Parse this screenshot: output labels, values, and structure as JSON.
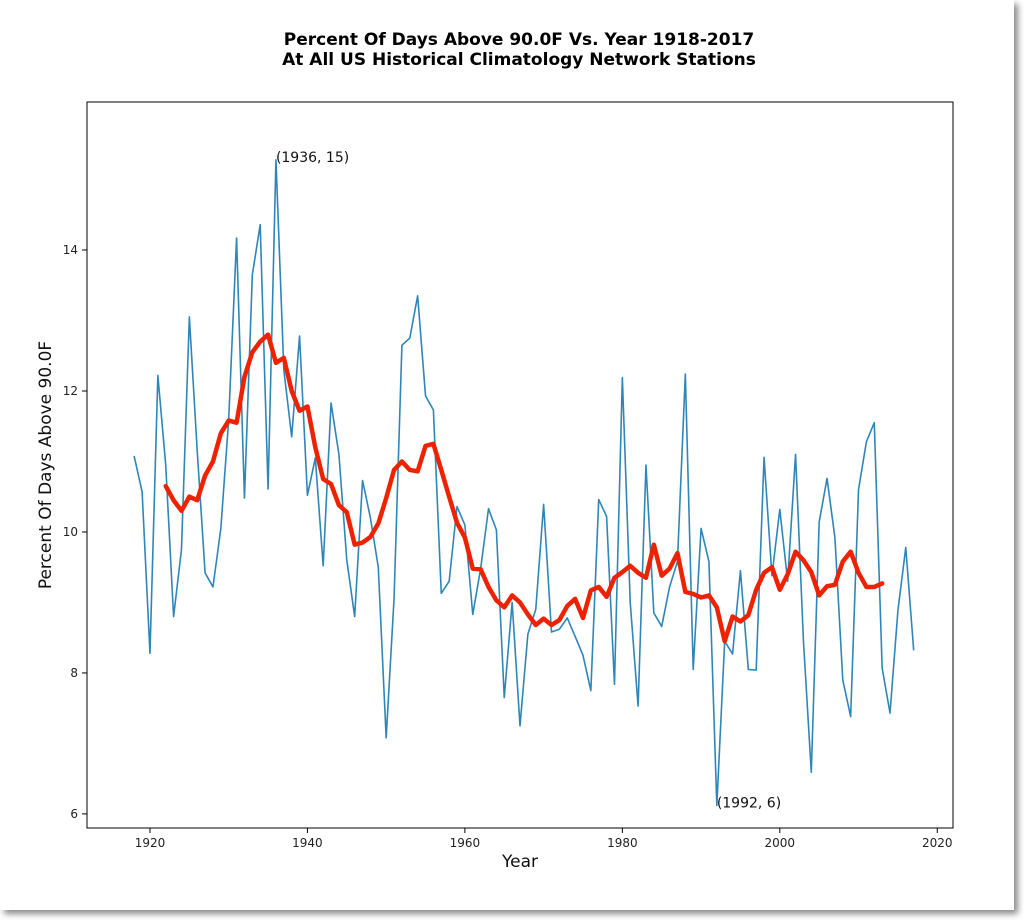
{
  "chart_data": {
    "type": "line",
    "title": [
      "Percent Of Days Above 90.0F Vs. Year 1918-2017",
      "At All US Historical Climatology Network Stations"
    ],
    "xlabel": "Year",
    "ylabel": "Percent Of Days Above 90.0F",
    "xlim": [
      1912,
      2022
    ],
    "ylim": [
      5.8,
      16.1
    ],
    "xticks": [
      1920,
      1940,
      1960,
      1980,
      2000,
      2020
    ],
    "yticks": [
      6,
      8,
      10,
      12,
      14
    ],
    "grid": false,
    "colors": {
      "series": "#2e86b8",
      "trend": "#ee2200"
    },
    "series": [
      {
        "x": [
          1918,
          1919,
          1920,
          1921,
          1922,
          1923,
          1924,
          1925,
          1926,
          1927,
          1928,
          1929,
          1930,
          1931,
          1932,
          1933,
          1934,
          1935,
          1936,
          1937,
          1938,
          1939,
          1940,
          1941,
          1942,
          1943,
          1944,
          1945,
          1946,
          1947,
          1948,
          1949,
          1950,
          1951,
          1952,
          1953,
          1954,
          1955,
          1956,
          1957,
          1958,
          1959,
          1960,
          1961,
          1962,
          1963,
          1964,
          1965,
          1966,
          1967,
          1968,
          1969,
          1970,
          1971,
          1972,
          1973,
          1974,
          1975,
          1976,
          1977,
          1978,
          1979,
          1980,
          1981,
          1982,
          1983,
          1984,
          1985,
          1986,
          1987,
          1988,
          1989,
          1990,
          1991,
          1992,
          1993,
          1994,
          1995,
          1996,
          1997,
          1998,
          1999,
          2000,
          2001,
          2002,
          2003,
          2004,
          2005,
          2006,
          2007,
          2008,
          2009,
          2010,
          2011,
          2012,
          2013,
          2014,
          2015,
          2016,
          2017
        ],
        "values": [
          11.07,
          10.57,
          8.28,
          12.22,
          10.95,
          8.8,
          9.75,
          13.05,
          11.15,
          9.42,
          9.22,
          10.05,
          11.6,
          14.17,
          10.48,
          13.65,
          14.36,
          10.61,
          15.28,
          12.3,
          11.35,
          12.78,
          10.52,
          11.05,
          9.52,
          11.83,
          11.1,
          9.6,
          8.8,
          10.73,
          10.2,
          9.5,
          7.08,
          9.05,
          12.65,
          12.75,
          13.35,
          11.93,
          11.73,
          9.13,
          9.3,
          10.36,
          10.1,
          8.83,
          9.48,
          10.33,
          10.03,
          7.65,
          9.0,
          7.25,
          8.55,
          8.9,
          10.39,
          8.58,
          8.62,
          8.78,
          8.52,
          8.25,
          7.75,
          10.46,
          10.22,
          7.84,
          12.19,
          9.0,
          7.53,
          10.95,
          8.85,
          8.66,
          9.22,
          9.58,
          12.24,
          8.05,
          10.05,
          9.58,
          6.12,
          8.45,
          8.27,
          9.45,
          8.05,
          8.04,
          11.06,
          9.38,
          10.32,
          9.3,
          11.1,
          8.46,
          6.59,
          10.14,
          10.76,
          9.92,
          7.9,
          7.38,
          10.6,
          11.28,
          11.55,
          8.07,
          7.43,
          8.88,
          9.78,
          8.33
        ]
      },
      {
        "x": [
          1922,
          1923,
          1924,
          1925,
          1926,
          1927,
          1928,
          1929,
          1930,
          1931,
          1932,
          1933,
          1934,
          1935,
          1936,
          1937,
          1938,
          1939,
          1940,
          1941,
          1942,
          1943,
          1944,
          1945,
          1946,
          1947,
          1948,
          1949,
          1950,
          1951,
          1952,
          1953,
          1954,
          1955,
          1956,
          1957,
          1958,
          1959,
          1960,
          1961,
          1962,
          1963,
          1964,
          1965,
          1966,
          1967,
          1968,
          1969,
          1970,
          1971,
          1972,
          1973,
          1974,
          1975,
          1976,
          1977,
          1978,
          1979,
          1980,
          1981,
          1982,
          1983,
          1984,
          1985,
          1986,
          1987,
          1988,
          1989,
          1990,
          1991,
          1992,
          1993,
          1994,
          1995,
          1996,
          1997,
          1998,
          1999,
          2000,
          2001,
          2002,
          2003,
          2004,
          2005,
          2006,
          2007,
          2008,
          2009,
          2010,
          2011,
          2012,
          2013
        ],
        "values": [
          10.65,
          10.45,
          10.3,
          10.5,
          10.45,
          10.8,
          11.0,
          11.4,
          11.58,
          11.55,
          12.2,
          12.55,
          12.7,
          12.8,
          12.4,
          12.47,
          12.0,
          11.72,
          11.78,
          11.2,
          10.75,
          10.68,
          10.38,
          10.28,
          9.82,
          9.85,
          9.93,
          10.12,
          10.48,
          10.88,
          11.0,
          10.88,
          10.86,
          11.22,
          11.25,
          10.88,
          10.5,
          10.13,
          9.92,
          9.48,
          9.47,
          9.22,
          9.03,
          8.93,
          9.1,
          9.0,
          8.83,
          8.68,
          8.77,
          8.68,
          8.75,
          8.95,
          9.05,
          8.78,
          9.17,
          9.22,
          9.08,
          9.35,
          9.43,
          9.52,
          9.42,
          9.35,
          9.82,
          9.38,
          9.48,
          9.7,
          9.15,
          9.12,
          9.07,
          9.1,
          8.93,
          8.45,
          8.8,
          8.73,
          8.82,
          9.18,
          9.42,
          9.5,
          9.18,
          9.4,
          9.72,
          9.6,
          9.43,
          9.1,
          9.23,
          9.25,
          9.58,
          9.72,
          9.42,
          9.22,
          9.22,
          9.27
        ]
      }
    ],
    "annotations": [
      {
        "text": "(1936, 15)",
        "x": 1936,
        "y": 15.28
      },
      {
        "text": "(1992, 6)",
        "x": 1992,
        "y": 6.12
      }
    ]
  }
}
